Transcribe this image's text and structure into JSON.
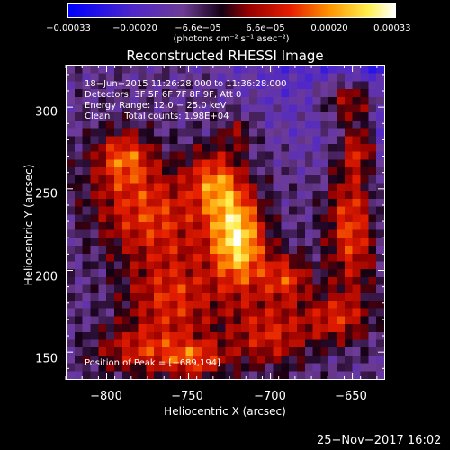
{
  "chart_data": {
    "type": "heatmap",
    "title": "Reconstructed RHESSI Image",
    "xlabel": "Heliocentric X (arcsec)",
    "ylabel": "Heliocentric Y (arcsec)",
    "xlim": [
      -825,
      -630
    ],
    "ylim": [
      133,
      326
    ],
    "x_ticks": [
      -800,
      -750,
      -700,
      -650
    ],
    "y_ticks": [
      150,
      200,
      250,
      300
    ],
    "x_tick_labels": [
      "−800",
      "−750",
      "−700",
      "−650"
    ],
    "y_tick_labels": [
      "150",
      "200",
      "250",
      "300"
    ],
    "colorbar": {
      "tick_values": [
        -0.00033,
        -0.0002,
        -6.6e-05,
        6.6e-05,
        0.0002,
        0.00033
      ],
      "tick_labels": [
        "−0.00033",
        "−0.00020",
        "−6.6e−05",
        "6.6e−05",
        "0.00020",
        "0.00033"
      ],
      "units_label": "(photons cm⁻² s⁻¹ asec⁻²)",
      "range": [
        -0.00033,
        0.00033
      ]
    },
    "annotations": {
      "time_range": "18−Jun−2015 11:26:28.000 to 11:36:28.000",
      "detectors": "Detectors: 3F 5F 6F 7F 8F 9F, Att 0",
      "energy_range": "Energy Range: 12.0 − 25.0 keV",
      "algorithm": "Clean     Total counts: 1.98E+04",
      "peak": "Position of Peak = [−689,194]"
    },
    "peak": {
      "x": -689,
      "y": 194
    },
    "emission_sources": [
      {
        "x": -720,
        "y": 220,
        "rx": 17,
        "ry": 32,
        "amp": 1.0,
        "angle": 0.1
      },
      {
        "x": -735,
        "y": 255,
        "rx": 16,
        "ry": 20,
        "amp": 0.55,
        "angle": 0
      },
      {
        "x": -775,
        "y": 235,
        "rx": 30,
        "ry": 40,
        "amp": 0.6,
        "angle": 0.8
      },
      {
        "x": -790,
        "y": 270,
        "rx": 16,
        "ry": 16,
        "amp": 0.5,
        "angle": 0
      },
      {
        "x": -760,
        "y": 180,
        "rx": 30,
        "ry": 25,
        "amp": 0.5,
        "angle": 0
      },
      {
        "x": -780,
        "y": 150,
        "rx": 30,
        "ry": 15,
        "amp": 0.45,
        "angle": 0
      },
      {
        "x": -700,
        "y": 160,
        "rx": 25,
        "ry": 20,
        "amp": 0.5,
        "angle": 0
      },
      {
        "x": -690,
        "y": 195,
        "rx": 15,
        "ry": 15,
        "amp": 0.55,
        "angle": 0
      },
      {
        "x": -650,
        "y": 230,
        "rx": 15,
        "ry": 45,
        "amp": 0.65,
        "angle": 0
      },
      {
        "x": -650,
        "y": 305,
        "rx": 20,
        "ry": 15,
        "amp": 0.65,
        "angle": 0
      },
      {
        "x": -645,
        "y": 275,
        "rx": 12,
        "ry": 15,
        "amp": 0.5,
        "angle": 0
      },
      {
        "x": -660,
        "y": 170,
        "rx": 20,
        "ry": 15,
        "amp": 0.45,
        "angle": 0
      },
      {
        "x": -745,
        "y": 145,
        "rx": 20,
        "ry": 12,
        "amp": 0.5,
        "angle": 0
      },
      {
        "x": -720,
        "y": 285,
        "rx": 10,
        "ry": 10,
        "amp": 0.3,
        "angle": 0
      }
    ]
  },
  "footer": {
    "timestamp": "25−Nov−2017 16:02"
  },
  "colors": {
    "background": "#000000",
    "foreground": "#ffffff"
  }
}
